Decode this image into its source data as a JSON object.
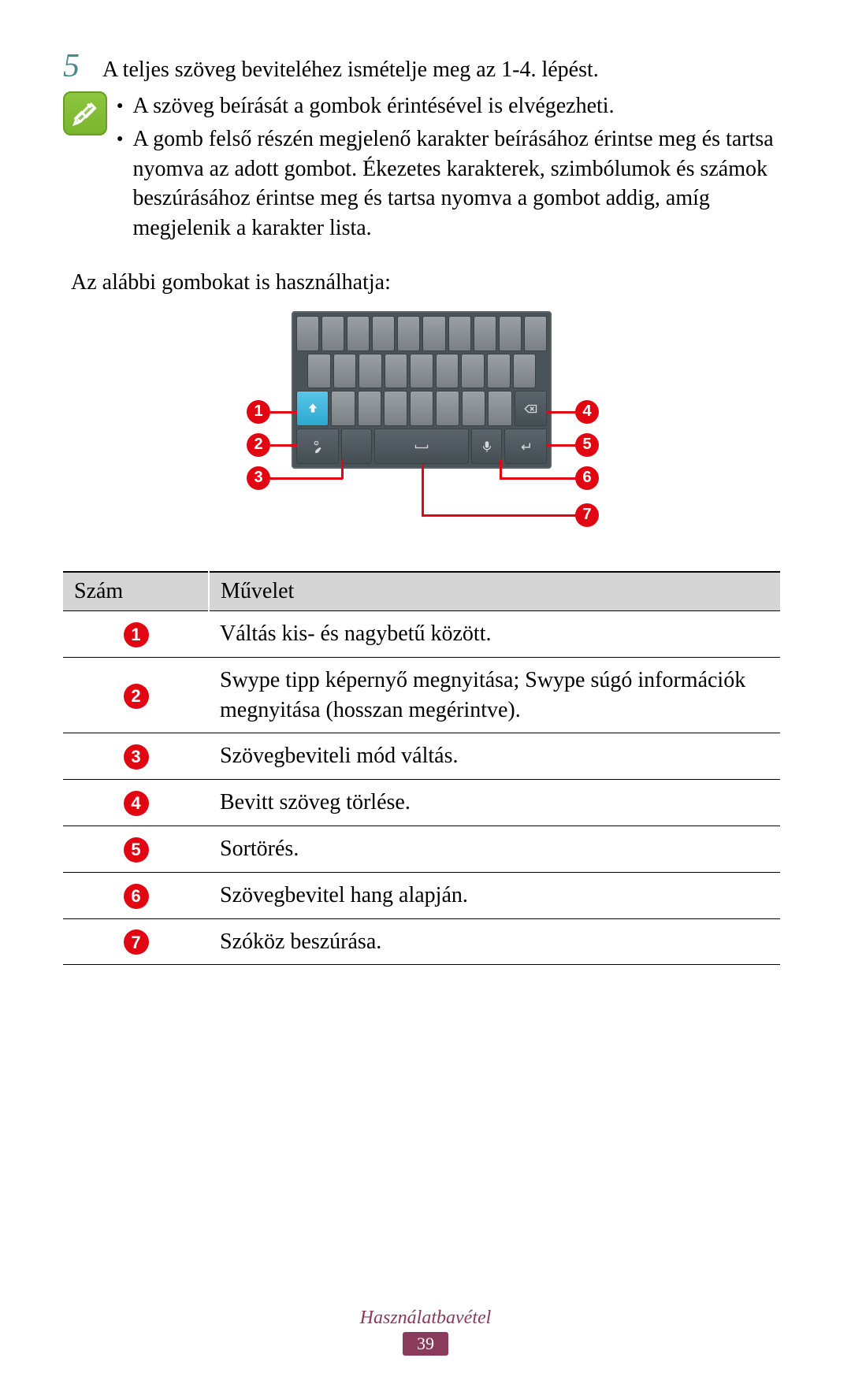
{
  "step": {
    "number": "5",
    "text": "A teljes szöveg beviteléhez ismételje meg az 1-4. lépést."
  },
  "note": {
    "bullets": [
      "A szöveg beírását a gombok érintésével is elvégezheti.",
      "A gomb felső részén megjelenő karakter beírásához érintse meg és tartsa nyomva az adott gombot. Ékezetes karakterek, szimbólumok és számok beszúrásához érintse meg és tartsa nyomva a gombot addig, amíg megjelenik a karakter lista."
    ]
  },
  "keyUsageIntro": "Az alábbi gombokat is használhatja:",
  "keyboard": {
    "callouts": [
      {
        "id": "1",
        "side": "left"
      },
      {
        "id": "2",
        "side": "left"
      },
      {
        "id": "3",
        "side": "left"
      },
      {
        "id": "4",
        "side": "right"
      },
      {
        "id": "5",
        "side": "right"
      },
      {
        "id": "6",
        "side": "right"
      },
      {
        "id": "7",
        "side": "right"
      }
    ],
    "colors": {
      "badge_bg": "#e20613",
      "badge_fg": "#ffffff",
      "kb_bg": "#4a5358",
      "key_light": "#8e9497",
      "key_dark": "#4e575c",
      "key_blue": "#3fb6dd"
    }
  },
  "table": {
    "headers": [
      "Szám",
      "Művelet"
    ],
    "rows": [
      {
        "num": "1",
        "op": "Váltás kis- és nagybetű között."
      },
      {
        "num": "2",
        "op": "Swype tipp képernyő megnyitása; Swype súgó információk megnyitása (hosszan megérintve)."
      },
      {
        "num": "3",
        "op": "Szövegbeviteli mód váltás."
      },
      {
        "num": "4",
        "op": "Bevitt szöveg törlése."
      },
      {
        "num": "5",
        "op": "Sortörés."
      },
      {
        "num": "6",
        "op": "Szövegbevitel hang alapján."
      },
      {
        "num": "7",
        "op": "Szóköz beszúrása."
      }
    ]
  },
  "footer": {
    "section": "Használatbavétel",
    "page": "39"
  }
}
